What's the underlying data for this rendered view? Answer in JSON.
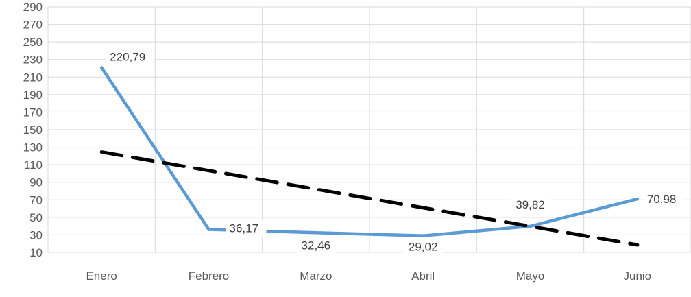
{
  "chart_data": {
    "type": "line",
    "categories": [
      "Enero",
      "Febrero",
      "Marzo",
      "Abril",
      "Mayo",
      "Junio"
    ],
    "series": [
      {
        "values": [
          220.79,
          36.17,
          32.46,
          29.02,
          39.82,
          70.98
        ],
        "color": "#5B9BD5",
        "style": "solid"
      }
    ],
    "data_labels": [
      "220,79",
      "36,17",
      "32,46",
      "29,02",
      "39,82",
      "70,98"
    ],
    "trendline": {
      "type": "linear",
      "style": "dashed",
      "color": "#000000"
    },
    "y_ticks": [
      "10",
      "30",
      "50",
      "70",
      "90",
      "110",
      "130",
      "150",
      "170",
      "190",
      "210",
      "230",
      "250",
      "270",
      "290"
    ],
    "ylim": [
      10,
      290
    ],
    "grid": true,
    "legend": "none",
    "title": "",
    "xlabel": "",
    "ylabel": ""
  }
}
